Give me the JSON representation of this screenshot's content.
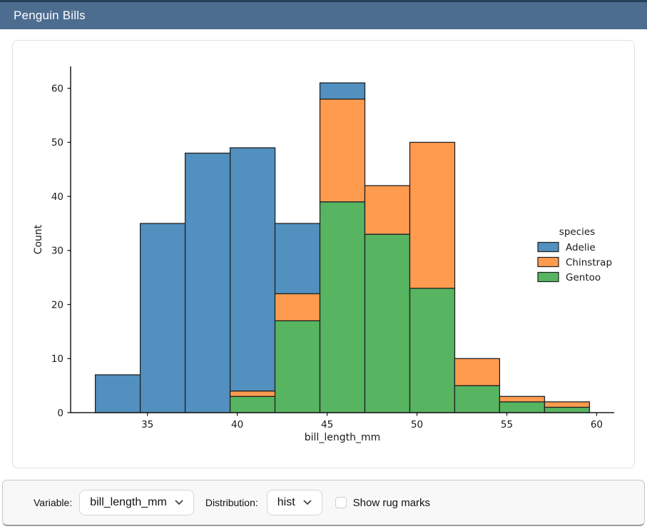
{
  "header": {
    "title": "Penguin Bills",
    "bg_color": "#4c6c90",
    "top_border_color": "#24405b"
  },
  "chart_data": {
    "type": "bar",
    "subtype": "stacked-histogram",
    "xlabel": "bill_length_mm",
    "ylabel": "Count",
    "bin_edges": [
      32.1,
      34.6,
      37.1,
      39.6,
      42.1,
      44.6,
      47.1,
      49.6,
      52.1,
      54.6,
      57.1,
      59.6
    ],
    "series": [
      {
        "name": "Adelie",
        "color": "#5190BF",
        "values": [
          7,
          35,
          48,
          45,
          13,
          3,
          0,
          0,
          0,
          0,
          0
        ]
      },
      {
        "name": "Chinstrap",
        "color": "#FF9B4F",
        "values": [
          0,
          0,
          0,
          1,
          5,
          19,
          9,
          27,
          5,
          1,
          1
        ]
      },
      {
        "name": "Gentoo",
        "color": "#57B461",
        "values": [
          0,
          0,
          0,
          3,
          17,
          39,
          33,
          23,
          5,
          2,
          1
        ]
      }
    ],
    "stack_order_bottom_to_top": [
      "Gentoo",
      "Chinstrap",
      "Adelie"
    ],
    "bin_totals": [
      7,
      35,
      48,
      49,
      35,
      61,
      42,
      50,
      10,
      3,
      2
    ],
    "legend": {
      "title": "species",
      "entries": [
        "Adelie",
        "Chinstrap",
        "Gentoo"
      ],
      "position": "center-right",
      "frame": false
    },
    "xlim": [
      30.725,
      60.975
    ],
    "ylim": [
      0,
      64.05
    ],
    "xticks": [
      35,
      40,
      45,
      50,
      55,
      60
    ],
    "yticks": [
      0,
      10,
      20,
      30,
      40,
      50,
      60
    ],
    "grid": false,
    "bar_edge_color": "#212121",
    "axis_color": "#1a1a1a"
  },
  "controls": {
    "variable_label": "Variable:",
    "variable_value": "bill_length_mm",
    "distribution_label": "Distribution:",
    "distribution_value": "hist",
    "rug_label": "Show rug marks",
    "rug_checked": false
  }
}
